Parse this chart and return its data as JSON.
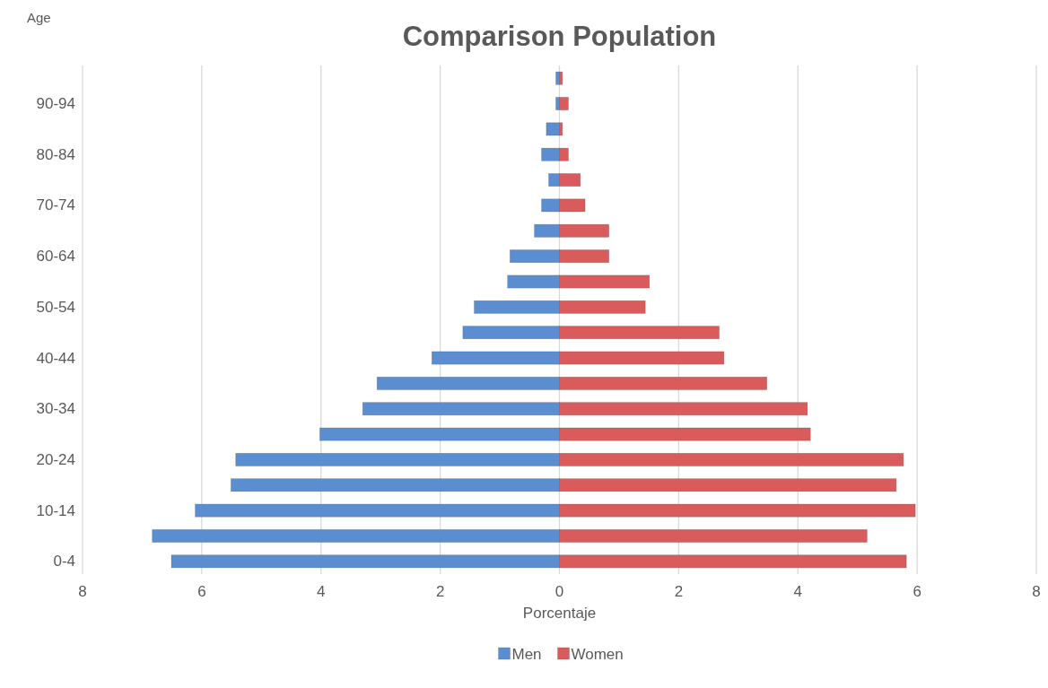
{
  "chart_data": {
    "type": "bar",
    "orientation": "horizontal",
    "stacked": true,
    "title": "Comparison Population",
    "xlabel": "Porcentaje",
    "ylabel": "Age",
    "categories": [
      null,
      "90-94",
      null,
      "80-84",
      null,
      "70-74",
      null,
      "60-64",
      null,
      "50-54",
      null,
      "40-44",
      null,
      "30-34",
      null,
      "20-24",
      null,
      "10-14",
      null,
      "0-4"
    ],
    "series": [
      {
        "name": "Men",
        "color": "#5a8ed0",
        "values": [
          -0.06,
          -0.06,
          -0.22,
          -0.3,
          -0.18,
          -0.3,
          -0.42,
          -0.83,
          -0.87,
          -1.43,
          -1.62,
          -2.14,
          -3.06,
          -3.3,
          -4.02,
          -5.43,
          -5.51,
          -6.11,
          -6.83,
          -6.51
        ]
      },
      {
        "name": "Women",
        "color": "#d95b5b",
        "values": [
          0.05,
          0.15,
          0.05,
          0.15,
          0.35,
          0.43,
          0.83,
          0.83,
          1.51,
          1.44,
          2.68,
          2.76,
          3.48,
          4.16,
          4.21,
          5.77,
          5.65,
          5.97,
          5.16,
          5.82
        ]
      }
    ],
    "xlim": [
      -8,
      8
    ],
    "xticks": [
      {
        "value": -8,
        "label": "8"
      },
      {
        "value": -6,
        "label": "6"
      },
      {
        "value": -4,
        "label": "4"
      },
      {
        "value": -2,
        "label": "2"
      },
      0,
      2,
      4,
      6,
      8
    ],
    "grid": "x",
    "legend": "bottom"
  }
}
